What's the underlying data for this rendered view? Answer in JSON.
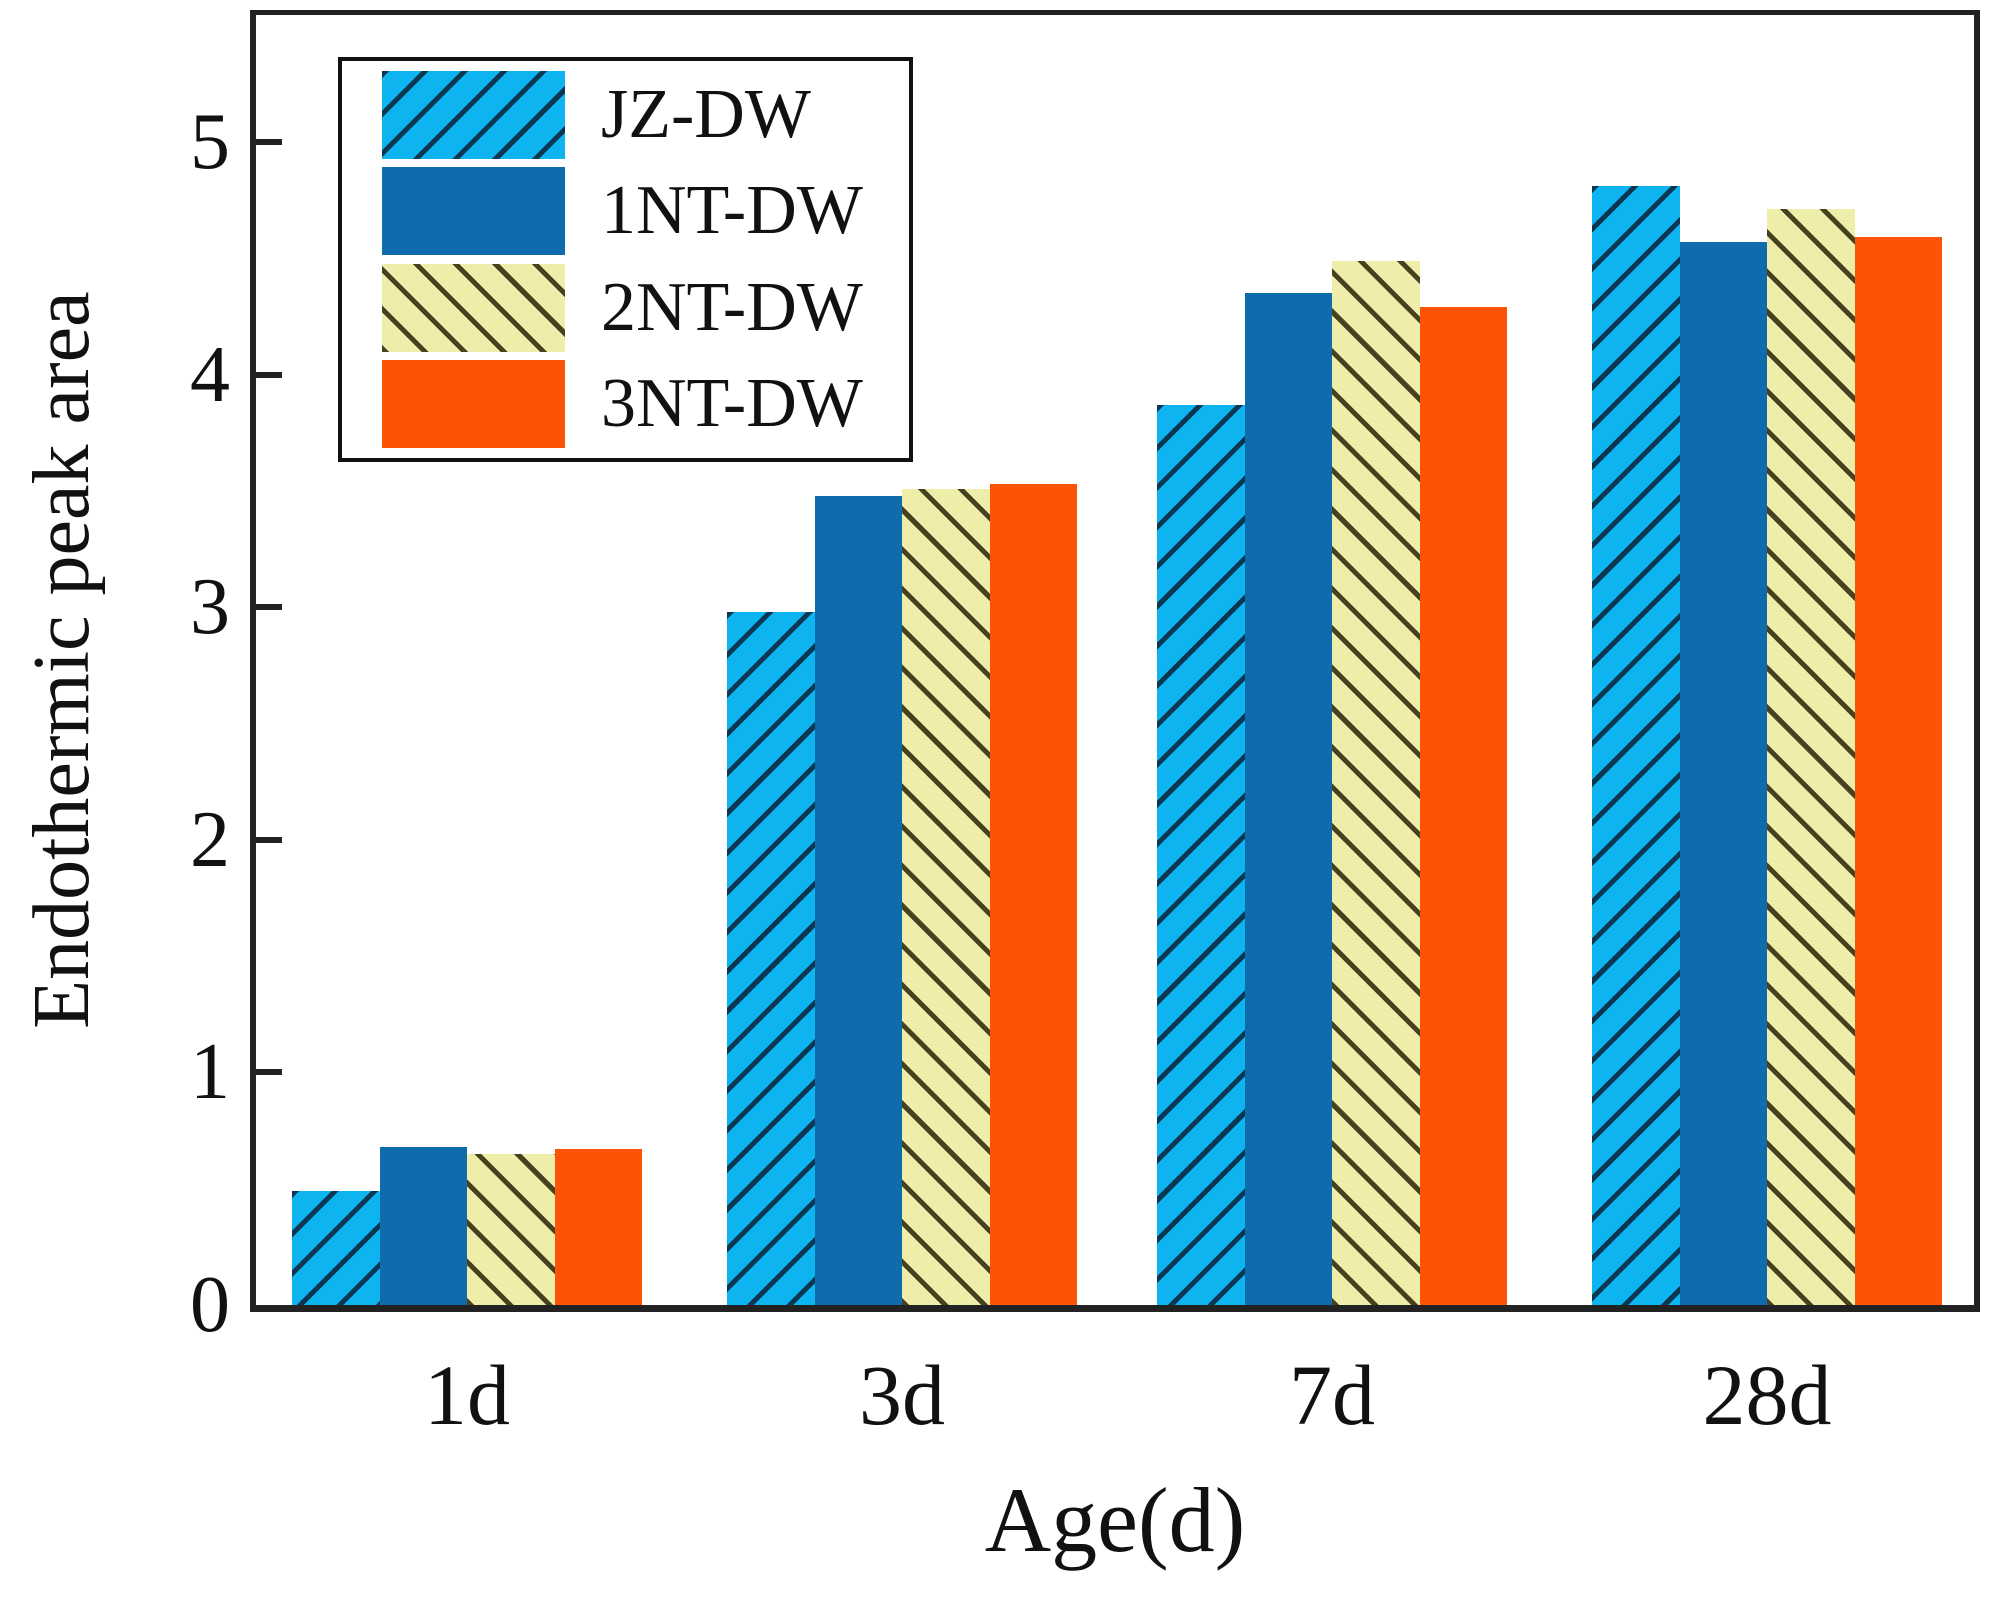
{
  "figure": {
    "ylabel": "Endothermic peak area",
    "xlabel": "Age(d)"
  },
  "chart_data": {
    "type": "bar",
    "title": "",
    "xlabel": "Age(d)",
    "ylabel": "Endothermic peak area",
    "categories": [
      "1d",
      "3d",
      "7d",
      "28d"
    ],
    "series": [
      {
        "name": "JZ-DW",
        "color": "#0db4f0",
        "hatch": "/",
        "hatch_color": "#0b3752",
        "values": [
          0.49,
          2.98,
          3.87,
          4.81
        ]
      },
      {
        "name": "1NT-DW",
        "color": "#0e6cac",
        "hatch": null,
        "hatch_color": null,
        "values": [
          0.68,
          3.48,
          4.35,
          4.57
        ]
      },
      {
        "name": "2NT-DW",
        "color": "#efedaa",
        "hatch": "\\",
        "hatch_color": "#46421f",
        "values": [
          0.65,
          3.51,
          4.49,
          4.71
        ]
      },
      {
        "name": "3NT-DW",
        "color": "#fc5306",
        "hatch": null,
        "hatch_color": null,
        "values": [
          0.67,
          3.53,
          4.29,
          4.59
        ]
      }
    ],
    "yticks": [
      0,
      1,
      2,
      3,
      4,
      5
    ],
    "ylim": [
      0,
      5.55
    ],
    "grid": false,
    "legend_position": "upper-left",
    "axis_color": "#222222"
  }
}
